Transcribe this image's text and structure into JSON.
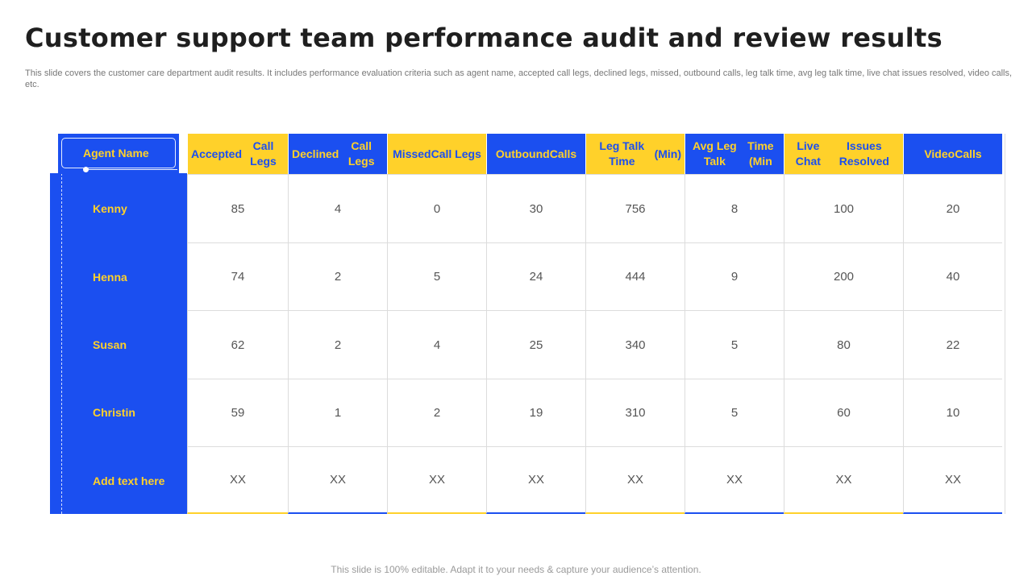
{
  "title": "Customer support team performance audit and review results",
  "subtitle": "This slide covers the customer care department audit results. It includes performance evaluation criteria such as agent name, accepted call legs, declined legs, missed, outbound calls, leg talk time, avg leg talk time, live chat issues resolved, video calls, etc.",
  "footer": "This slide is 100% editable. Adapt it to your needs & capture your audience’s attention.",
  "colors": {
    "blue": "#1b4ff0",
    "yellow": "#ffd12a"
  },
  "table": {
    "name_header": "Agent Name",
    "columns": [
      [
        "Accepted",
        "Call Legs"
      ],
      [
        "Declined",
        "Call Legs"
      ],
      [
        "Missed",
        "Call Legs"
      ],
      [
        "Outbound",
        "Calls"
      ],
      [
        "Leg Talk Time",
        "(Min)"
      ],
      [
        "Avg Leg Talk",
        "Time (Min"
      ],
      [
        "Live Chat",
        "Issues Resolved"
      ],
      [
        "Video",
        "Calls"
      ]
    ],
    "rows": [
      {
        "name": "Kenny",
        "values": [
          "85",
          "4",
          "0",
          "30",
          "756",
          "8",
          "100",
          "20"
        ]
      },
      {
        "name": "Henna",
        "values": [
          "74",
          "2",
          "5",
          "24",
          "444",
          "9",
          "200",
          "40"
        ]
      },
      {
        "name": "Susan",
        "values": [
          "62",
          "2",
          "4",
          "25",
          "340",
          "5",
          "80",
          "22"
        ]
      },
      {
        "name": "Christin",
        "values": [
          "59",
          "1",
          "2",
          "19",
          "310",
          "5",
          "60",
          "10"
        ]
      },
      {
        "name": "Add text here",
        "values": [
          "XX",
          "XX",
          "XX",
          "XX",
          "XX",
          "XX",
          "XX",
          "XX"
        ]
      }
    ]
  }
}
